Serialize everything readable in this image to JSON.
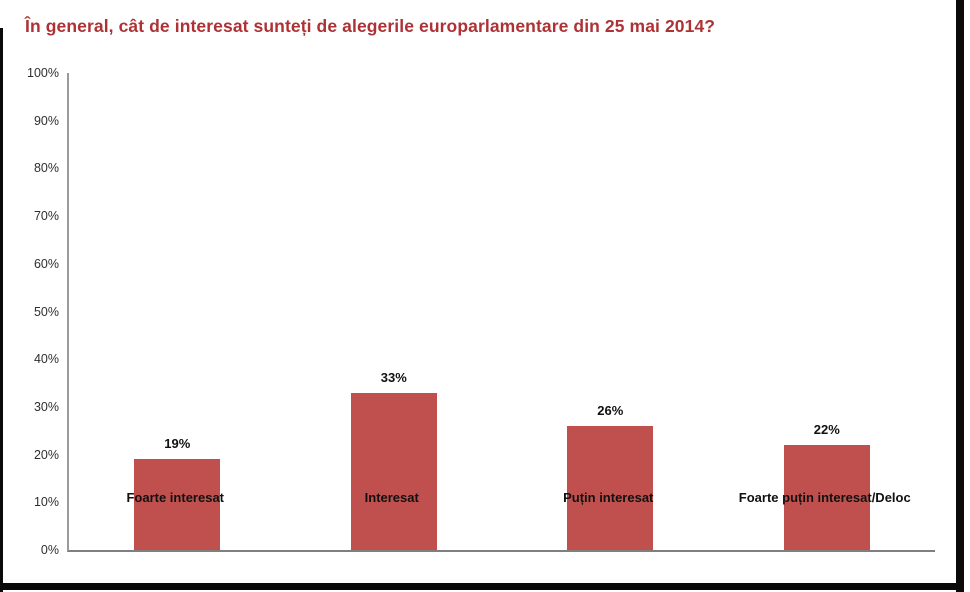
{
  "title": {
    "text": "În general, cât de interesat sunteți de alegerile europarlamentare din 25 mai 2014?",
    "color": "#AE3235"
  },
  "frame": {
    "border_color": "#0a0a0a"
  },
  "chart_data": {
    "type": "bar",
    "title": "În general, cât de interesat sunteți de alegerile europarlamentare din 25 mai 2014?",
    "categories": [
      "Foarte interesat",
      "Interesat",
      "Puțin interesat",
      "Foarte puțin interesat/Deloc"
    ],
    "values": [
      19,
      33,
      26,
      22
    ],
    "value_labels": [
      "19%",
      "33%",
      "26%",
      "22%"
    ],
    "xlabel": "",
    "ylabel": "",
    "ylim": [
      0,
      100
    ],
    "ytick_step": 10,
    "ytick_labels": [
      "0%",
      "10%",
      "20%",
      "30%",
      "40%",
      "50%",
      "60%",
      "70%",
      "80%",
      "90%",
      "100%"
    ],
    "grid": false,
    "legend": "none",
    "bar_color": "#C0504D",
    "axis_color": "#7f7f7f",
    "tick_label_color": "#2e2e2e",
    "data_label_color": "#111111"
  }
}
